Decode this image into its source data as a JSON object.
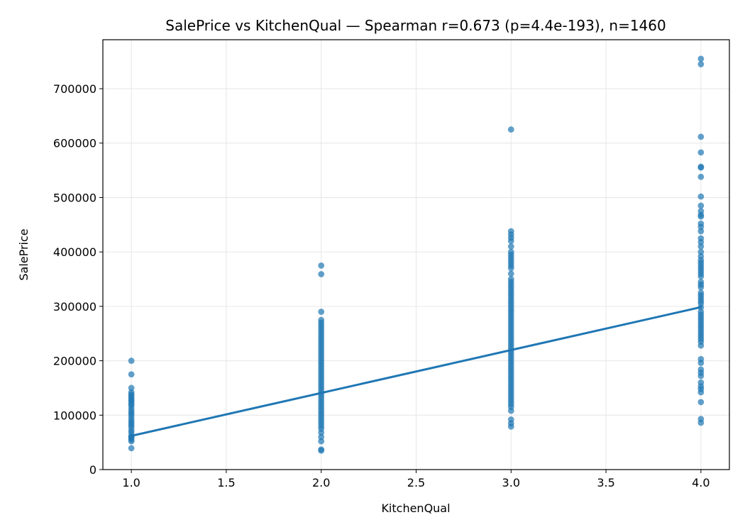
{
  "chart_data": {
    "type": "scatter",
    "title": "SalePrice vs KitchenQual — Spearman r=0.673 (p=4.4e-193), n=1460",
    "xlabel": "KitchenQual",
    "ylabel": "SalePrice",
    "xlim": [
      0.85,
      4.15
    ],
    "ylim": [
      0,
      790000
    ],
    "x_ticks": [
      {
        "value": 1.0,
        "label": "1.0"
      },
      {
        "value": 1.5,
        "label": "1.5"
      },
      {
        "value": 2.0,
        "label": "2.0"
      },
      {
        "value": 2.5,
        "label": "2.5"
      },
      {
        "value": 3.0,
        "label": "3.0"
      },
      {
        "value": 3.5,
        "label": "3.5"
      },
      {
        "value": 4.0,
        "label": "4.0"
      }
    ],
    "y_ticks": [
      {
        "value": 0,
        "label": "0"
      },
      {
        "value": 100000,
        "label": "100000"
      },
      {
        "value": 200000,
        "label": "200000"
      },
      {
        "value": 300000,
        "label": "300000"
      },
      {
        "value": 400000,
        "label": "400000"
      },
      {
        "value": 500000,
        "label": "500000"
      },
      {
        "value": 600000,
        "label": "600000"
      },
      {
        "value": 700000,
        "label": "700000"
      }
    ],
    "grid": true,
    "point_color": "#1f77b4",
    "point_opacity": 0.7,
    "series": [
      {
        "points": [
          {
            "x": 1,
            "y": 39300
          },
          {
            "x": 1,
            "y": 52000
          },
          {
            "x": 1,
            "y": 55000
          },
          {
            "x": 1,
            "y": 58000
          },
          {
            "x": 1,
            "y": 60000
          },
          {
            "x": 1,
            "y": 62000
          },
          {
            "x": 1,
            "y": 68000
          },
          {
            "x": 1,
            "y": 72000
          },
          {
            "x": 1,
            "y": 78000
          },
          {
            "x": 1,
            "y": 82000
          },
          {
            "x": 1,
            "y": 86000
          },
          {
            "x": 1,
            "y": 90000
          },
          {
            "x": 1,
            "y": 95000
          },
          {
            "x": 1,
            "y": 100000
          },
          {
            "x": 1,
            "y": 104000
          },
          {
            "x": 1,
            "y": 108000
          },
          {
            "x": 1,
            "y": 113000
          },
          {
            "x": 1,
            "y": 118000
          },
          {
            "x": 1,
            "y": 121000
          },
          {
            "x": 1,
            "y": 125000
          },
          {
            "x": 1,
            "y": 128000
          },
          {
            "x": 1,
            "y": 131000
          },
          {
            "x": 1,
            "y": 135000
          },
          {
            "x": 1,
            "y": 138000
          },
          {
            "x": 1,
            "y": 142000
          },
          {
            "x": 1,
            "y": 150000
          },
          {
            "x": 1,
            "y": 175000
          },
          {
            "x": 1,
            "y": 200000
          },
          {
            "x": 2,
            "y": 34900
          },
          {
            "x": 2,
            "y": 37000
          },
          {
            "x": 2,
            "y": 52000
          },
          {
            "x": 2,
            "y": 60000
          },
          {
            "x": 2,
            "y": 68000
          },
          {
            "x": 2,
            "y": 75000
          },
          {
            "x": 2,
            "y": 80000
          },
          {
            "x": 2,
            "y": 85000
          },
          {
            "x": 2,
            "y": 90000
          },
          {
            "x": 2,
            "y": 95000
          },
          {
            "x": 2,
            "y": 100000
          },
          {
            "x": 2,
            "y": 105000
          },
          {
            "x": 2,
            "y": 110000
          },
          {
            "x": 2,
            "y": 115000
          },
          {
            "x": 2,
            "y": 120000
          },
          {
            "x": 2,
            "y": 125000
          },
          {
            "x": 2,
            "y": 130000
          },
          {
            "x": 2,
            "y": 135000
          },
          {
            "x": 2,
            "y": 140000
          },
          {
            "x": 2,
            "y": 145000
          },
          {
            "x": 2,
            "y": 150000
          },
          {
            "x": 2,
            "y": 155000
          },
          {
            "x": 2,
            "y": 160000
          },
          {
            "x": 2,
            "y": 165000
          },
          {
            "x": 2,
            "y": 170000
          },
          {
            "x": 2,
            "y": 175000
          },
          {
            "x": 2,
            "y": 180000
          },
          {
            "x": 2,
            "y": 185000
          },
          {
            "x": 2,
            "y": 190000
          },
          {
            "x": 2,
            "y": 195000
          },
          {
            "x": 2,
            "y": 200000
          },
          {
            "x": 2,
            "y": 205000
          },
          {
            "x": 2,
            "y": 210000
          },
          {
            "x": 2,
            "y": 215000
          },
          {
            "x": 2,
            "y": 220000
          },
          {
            "x": 2,
            "y": 225000
          },
          {
            "x": 2,
            "y": 230000
          },
          {
            "x": 2,
            "y": 235000
          },
          {
            "x": 2,
            "y": 240000
          },
          {
            "x": 2,
            "y": 245000
          },
          {
            "x": 2,
            "y": 250000
          },
          {
            "x": 2,
            "y": 255000
          },
          {
            "x": 2,
            "y": 260000
          },
          {
            "x": 2,
            "y": 265000
          },
          {
            "x": 2,
            "y": 270000
          },
          {
            "x": 2,
            "y": 275000
          },
          {
            "x": 2,
            "y": 290000
          },
          {
            "x": 2,
            "y": 359100
          },
          {
            "x": 2,
            "y": 375000
          },
          {
            "x": 3,
            "y": 79000
          },
          {
            "x": 3,
            "y": 85000
          },
          {
            "x": 3,
            "y": 92000
          },
          {
            "x": 3,
            "y": 108000
          },
          {
            "x": 3,
            "y": 115000
          },
          {
            "x": 3,
            "y": 120000
          },
          {
            "x": 3,
            "y": 125000
          },
          {
            "x": 3,
            "y": 130000
          },
          {
            "x": 3,
            "y": 135000
          },
          {
            "x": 3,
            "y": 140000
          },
          {
            "x": 3,
            "y": 145000
          },
          {
            "x": 3,
            "y": 150000
          },
          {
            "x": 3,
            "y": 155000
          },
          {
            "x": 3,
            "y": 160000
          },
          {
            "x": 3,
            "y": 165000
          },
          {
            "x": 3,
            "y": 170000
          },
          {
            "x": 3,
            "y": 175000
          },
          {
            "x": 3,
            "y": 180000
          },
          {
            "x": 3,
            "y": 185000
          },
          {
            "x": 3,
            "y": 190000
          },
          {
            "x": 3,
            "y": 195000
          },
          {
            "x": 3,
            "y": 200000
          },
          {
            "x": 3,
            "y": 205000
          },
          {
            "x": 3,
            "y": 210000
          },
          {
            "x": 3,
            "y": 215000
          },
          {
            "x": 3,
            "y": 220000
          },
          {
            "x": 3,
            "y": 225000
          },
          {
            "x": 3,
            "y": 230000
          },
          {
            "x": 3,
            "y": 235000
          },
          {
            "x": 3,
            "y": 240000
          },
          {
            "x": 3,
            "y": 245000
          },
          {
            "x": 3,
            "y": 250000
          },
          {
            "x": 3,
            "y": 255000
          },
          {
            "x": 3,
            "y": 260000
          },
          {
            "x": 3,
            "y": 265000
          },
          {
            "x": 3,
            "y": 270000
          },
          {
            "x": 3,
            "y": 275000
          },
          {
            "x": 3,
            "y": 280000
          },
          {
            "x": 3,
            "y": 285000
          },
          {
            "x": 3,
            "y": 290000
          },
          {
            "x": 3,
            "y": 295000
          },
          {
            "x": 3,
            "y": 300000
          },
          {
            "x": 3,
            "y": 305000
          },
          {
            "x": 3,
            "y": 310000
          },
          {
            "x": 3,
            "y": 315000
          },
          {
            "x": 3,
            "y": 320000
          },
          {
            "x": 3,
            "y": 325000
          },
          {
            "x": 3,
            "y": 330000
          },
          {
            "x": 3,
            "y": 335000
          },
          {
            "x": 3,
            "y": 340000
          },
          {
            "x": 3,
            "y": 345000
          },
          {
            "x": 3,
            "y": 350000
          },
          {
            "x": 3,
            "y": 360000
          },
          {
            "x": 3,
            "y": 370000
          },
          {
            "x": 3,
            "y": 375000
          },
          {
            "x": 3,
            "y": 380000
          },
          {
            "x": 3,
            "y": 385000
          },
          {
            "x": 3,
            "y": 390000
          },
          {
            "x": 3,
            "y": 395000
          },
          {
            "x": 3,
            "y": 400000
          },
          {
            "x": 3,
            "y": 410000
          },
          {
            "x": 3,
            "y": 420000
          },
          {
            "x": 3,
            "y": 426000
          },
          {
            "x": 3,
            "y": 432000
          },
          {
            "x": 3,
            "y": 438000
          },
          {
            "x": 3,
            "y": 625000
          },
          {
            "x": 4,
            "y": 86000
          },
          {
            "x": 4,
            "y": 93000
          },
          {
            "x": 4,
            "y": 124000
          },
          {
            "x": 4,
            "y": 142000
          },
          {
            "x": 4,
            "y": 148000
          },
          {
            "x": 4,
            "y": 153000
          },
          {
            "x": 4,
            "y": 160000
          },
          {
            "x": 4,
            "y": 172000
          },
          {
            "x": 4,
            "y": 178000
          },
          {
            "x": 4,
            "y": 184000
          },
          {
            "x": 4,
            "y": 196000
          },
          {
            "x": 4,
            "y": 203000
          },
          {
            "x": 4,
            "y": 228000
          },
          {
            "x": 4,
            "y": 235000
          },
          {
            "x": 4,
            "y": 240000
          },
          {
            "x": 4,
            "y": 245000
          },
          {
            "x": 4,
            "y": 250000
          },
          {
            "x": 4,
            "y": 255000
          },
          {
            "x": 4,
            "y": 260000
          },
          {
            "x": 4,
            "y": 265000
          },
          {
            "x": 4,
            "y": 270000
          },
          {
            "x": 4,
            "y": 275000
          },
          {
            "x": 4,
            "y": 280000
          },
          {
            "x": 4,
            "y": 285000
          },
          {
            "x": 4,
            "y": 290000
          },
          {
            "x": 4,
            "y": 298000
          },
          {
            "x": 4,
            "y": 305000
          },
          {
            "x": 4,
            "y": 310000
          },
          {
            "x": 4,
            "y": 315000
          },
          {
            "x": 4,
            "y": 320000
          },
          {
            "x": 4,
            "y": 325000
          },
          {
            "x": 4,
            "y": 335000
          },
          {
            "x": 4,
            "y": 340000
          },
          {
            "x": 4,
            "y": 345000
          },
          {
            "x": 4,
            "y": 355000
          },
          {
            "x": 4,
            "y": 360000
          },
          {
            "x": 4,
            "y": 365000
          },
          {
            "x": 4,
            "y": 370000
          },
          {
            "x": 4,
            "y": 375000
          },
          {
            "x": 4,
            "y": 380000
          },
          {
            "x": 4,
            "y": 385000
          },
          {
            "x": 4,
            "y": 392000
          },
          {
            "x": 4,
            "y": 400000
          },
          {
            "x": 4,
            "y": 410000
          },
          {
            "x": 4,
            "y": 418000
          },
          {
            "x": 4,
            "y": 425000
          },
          {
            "x": 4,
            "y": 438000
          },
          {
            "x": 4,
            "y": 446000
          },
          {
            "x": 4,
            "y": 452000
          },
          {
            "x": 4,
            "y": 465000
          },
          {
            "x": 4,
            "y": 468000
          },
          {
            "x": 4,
            "y": 475000
          },
          {
            "x": 4,
            "y": 485000
          },
          {
            "x": 4,
            "y": 501800
          },
          {
            "x": 4,
            "y": 538000
          },
          {
            "x": 4,
            "y": 555000
          },
          {
            "x": 4,
            "y": 556581
          },
          {
            "x": 4,
            "y": 582933
          },
          {
            "x": 4,
            "y": 611657
          },
          {
            "x": 4,
            "y": 745000
          },
          {
            "x": 4,
            "y": 755000
          }
        ]
      }
    ],
    "trendline": {
      "x": [
        1.0,
        4.0
      ],
      "y": [
        62000,
        298500
      ],
      "color": "#1f77b4"
    }
  }
}
